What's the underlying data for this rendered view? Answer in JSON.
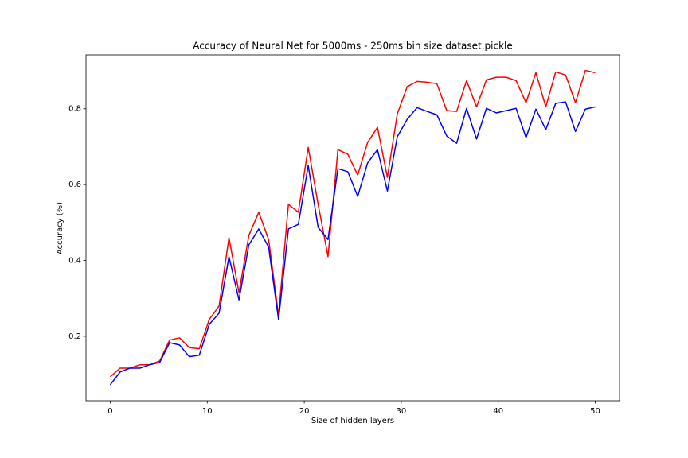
{
  "chart_data": {
    "type": "line",
    "title": "Accuracy of Neural Net for 5000ms - 250ms bin size dataset.pickle",
    "x_label": "Size of hidden layers",
    "y_label": "Accuracy (%)",
    "x": [
      0,
      1.02,
      2.04,
      3.06,
      4.08,
      5.1,
      6.12,
      7.14,
      8.16,
      9.18,
      10.2,
      11.22,
      12.24,
      13.27,
      14.29,
      15.31,
      16.33,
      17.35,
      18.37,
      19.39,
      20.41,
      21.43,
      22.45,
      23.47,
      24.49,
      25.51,
      26.53,
      27.55,
      28.57,
      29.59,
      30.61,
      31.63,
      32.65,
      33.67,
      34.69,
      35.71,
      36.73,
      37.76,
      38.78,
      39.8,
      40.82,
      41.84,
      42.86,
      43.88,
      44.9,
      45.92,
      46.94,
      47.96,
      48.98,
      50
    ],
    "series": [
      {
        "color": "#ff0000",
        "values": [
          0.093,
          0.116,
          0.116,
          0.125,
          0.125,
          0.135,
          0.19,
          0.196,
          0.17,
          0.167,
          0.244,
          0.28,
          0.46,
          0.315,
          0.466,
          0.527,
          0.455,
          0.255,
          0.548,
          0.527,
          0.698,
          0.548,
          0.41,
          0.692,
          0.68,
          0.625,
          0.711,
          0.751,
          0.619,
          0.786,
          0.858,
          0.872,
          0.87,
          0.866,
          0.795,
          0.793,
          0.874,
          0.805,
          0.876,
          0.883,
          0.883,
          0.874,
          0.816,
          0.895,
          0.805,
          0.897,
          0.889,
          0.816,
          0.901,
          0.895
        ]
      },
      {
        "color": "#0000ff",
        "values": [
          0.072,
          0.106,
          0.116,
          0.116,
          0.125,
          0.131,
          0.183,
          0.177,
          0.146,
          0.15,
          0.231,
          0.261,
          0.41,
          0.296,
          0.441,
          0.483,
          0.435,
          0.244,
          0.483,
          0.495,
          0.65,
          0.487,
          0.455,
          0.642,
          0.634,
          0.569,
          0.657,
          0.692,
          0.583,
          0.726,
          0.772,
          0.803,
          0.793,
          0.784,
          0.728,
          0.709,
          0.801,
          0.72,
          0.801,
          0.789,
          0.795,
          0.801,
          0.724,
          0.799,
          0.745,
          0.814,
          0.818,
          0.74,
          0.799,
          0.805
        ]
      }
    ],
    "xlim": [
      -2.5,
      52.5
    ],
    "xticks": [
      0,
      10,
      20,
      30,
      40,
      50
    ],
    "ylim": [
      0.03,
      0.942
    ],
    "yticks": [
      0.2,
      0.4,
      0.6,
      0.8
    ],
    "grid": false
  }
}
